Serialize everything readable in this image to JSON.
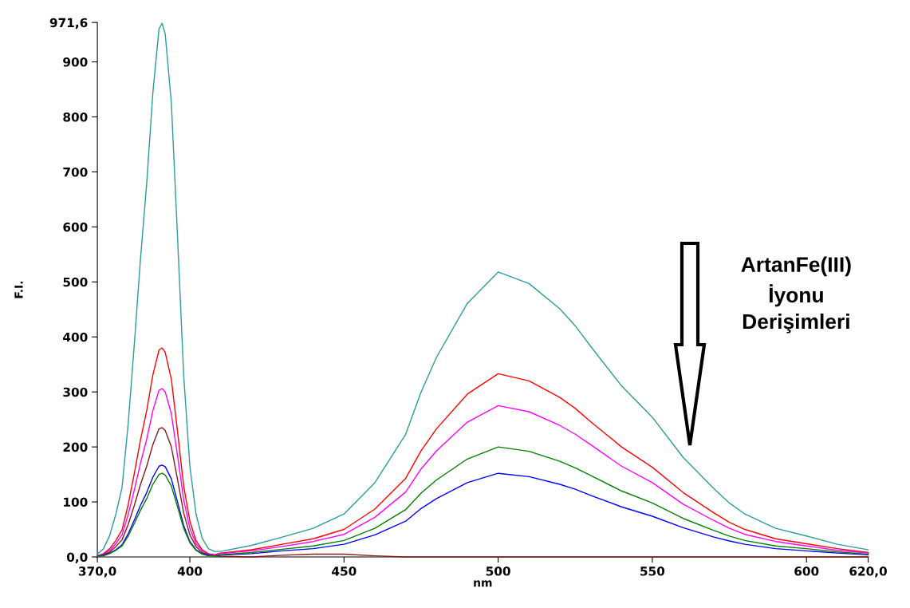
{
  "chart_data": {
    "type": "line",
    "xlabel": "nm",
    "ylabel": "F.I.",
    "x": [
      370,
      372,
      374,
      376,
      378,
      380,
      382,
      384,
      386,
      388,
      390,
      391,
      392,
      394,
      396,
      398,
      400,
      402,
      404,
      406,
      408,
      410,
      420,
      430,
      440,
      450,
      460,
      470,
      475,
      480,
      490,
      500,
      510,
      520,
      525,
      530,
      540,
      550,
      560,
      570,
      575,
      580,
      590,
      600,
      610,
      620
    ],
    "series": [
      {
        "color": "#2a9d9d",
        "values": [
          5,
          15,
          39,
          78,
          126,
          243,
          388,
          543,
          679,
          844,
          960,
          970,
          951,
          825,
          582,
          330,
          165,
          78,
          34,
          15,
          10,
          10,
          21,
          36,
          52,
          78,
          135,
          223,
          300,
          363,
          461,
          518,
          497,
          451,
          420,
          383,
          311,
          254,
          181,
          124,
          98,
          78,
          52,
          38,
          23,
          13
        ]
      },
      {
        "color": "#ff0000",
        "values": [
          2,
          6,
          15,
          30,
          49,
          95,
          152,
          213,
          266,
          331,
          376,
          380,
          372,
          323,
          228,
          129,
          65,
          30,
          13,
          6,
          4,
          7,
          13,
          23,
          33,
          50,
          87,
          143,
          193,
          233,
          296,
          333,
          320,
          290,
          270,
          246,
          200,
          163,
          117,
          80,
          63,
          50,
          33,
          24,
          15,
          8
        ]
      },
      {
        "color": "#ff00ff",
        "values": [
          2,
          5,
          12,
          24,
          40,
          77,
          122,
          171,
          214,
          266,
          303,
          306,
          300,
          260,
          184,
          104,
          52,
          24,
          11,
          5,
          3,
          6,
          11,
          19,
          28,
          41,
          72,
          118,
          160,
          193,
          245,
          275,
          264,
          239,
          223,
          204,
          165,
          135,
          96,
          66,
          52,
          41,
          28,
          20,
          12,
          7
        ]
      },
      {
        "color": "#8b1a1a",
        "values": [
          1,
          4,
          9,
          19,
          31,
          59,
          94,
          132,
          165,
          204,
          233,
          235,
          230,
          200,
          141,
          80,
          40,
          19,
          8,
          4,
          2,
          1,
          0,
          3,
          5,
          5,
          2,
          0,
          0,
          0,
          0,
          0,
          0,
          0,
          0,
          0,
          0,
          0,
          0,
          0,
          0,
          0,
          0,
          0,
          0,
          0
        ]
      },
      {
        "color": "#0000ff",
        "values": [
          1,
          3,
          7,
          13,
          22,
          42,
          67,
          94,
          117,
          145,
          165,
          167,
          164,
          142,
          100,
          57,
          28,
          13,
          6,
          3,
          2,
          3,
          6,
          11,
          15,
          23,
          40,
          65,
          88,
          106,
          135,
          152,
          146,
          132,
          123,
          112,
          91,
          74,
          53,
          36,
          29,
          23,
          15,
          11,
          7,
          4
        ]
      },
      {
        "color": "#008000",
        "values": [
          1,
          2,
          6,
          12,
          20,
          38,
          61,
          85,
          106,
          132,
          150,
          152,
          149,
          129,
          91,
          52,
          26,
          12,
          5,
          2,
          2,
          4,
          8,
          14,
          20,
          30,
          52,
          86,
          116,
          140,
          178,
          200,
          192,
          174,
          162,
          148,
          120,
          98,
          70,
          48,
          38,
          30,
          20,
          15,
          9,
          5
        ]
      }
    ],
    "xlim": [
      370,
      620
    ],
    "xticks": [
      {
        "value": 370,
        "label": "370,0"
      },
      400,
      450,
      500,
      550,
      600,
      {
        "value": 620,
        "label": "620,0"
      }
    ],
    "ylim": [
      0,
      971.6
    ],
    "yticks": [
      {
        "value": 0,
        "label": "0,0"
      },
      100,
      200,
      300,
      400,
      500,
      600,
      700,
      800,
      900,
      {
        "value": 971.6,
        "label": "971,6"
      }
    ],
    "grid": false,
    "legend": false,
    "marker": "none",
    "line_style": "solid",
    "annotations": [
      "ArtanFe(III)\nİyonu\nDerişimleri"
    ]
  }
}
